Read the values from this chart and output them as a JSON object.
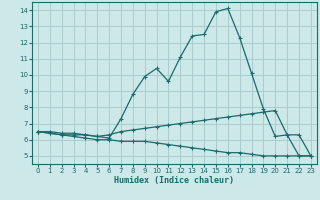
{
  "xlabel": "Humidex (Indice chaleur)",
  "ylabel": "",
  "bg_color": "#cce8e8",
  "grid_color": "#aacccc",
  "line_color": "#1a6b6b",
  "xlim": [
    -0.5,
    23.5
  ],
  "ylim": [
    4.5,
    14.5
  ],
  "xticks": [
    0,
    1,
    2,
    3,
    4,
    5,
    6,
    7,
    8,
    9,
    10,
    11,
    12,
    13,
    14,
    15,
    16,
    17,
    18,
    19,
    20,
    21,
    22,
    23
  ],
  "yticks": [
    5,
    6,
    7,
    8,
    9,
    10,
    11,
    12,
    13,
    14
  ],
  "line1_x": [
    0,
    1,
    2,
    3,
    4,
    5,
    6,
    7,
    8,
    9,
    10,
    11,
    12,
    13,
    14,
    15,
    16,
    17,
    18,
    19,
    20,
    21,
    22,
    23
  ],
  "line1_y": [
    6.5,
    6.4,
    6.3,
    6.3,
    6.3,
    6.2,
    6.1,
    7.3,
    8.8,
    9.9,
    10.4,
    9.6,
    11.1,
    12.4,
    12.5,
    13.9,
    14.1,
    12.3,
    10.1,
    7.9,
    6.2,
    6.3,
    5.0,
    5.0
  ],
  "line2_x": [
    0,
    1,
    2,
    3,
    4,
    5,
    6,
    7,
    8,
    9,
    10,
    11,
    12,
    13,
    14,
    15,
    16,
    17,
    18,
    19,
    20,
    21,
    22,
    23
  ],
  "line2_y": [
    6.5,
    6.5,
    6.4,
    6.4,
    6.3,
    6.2,
    6.3,
    6.5,
    6.6,
    6.7,
    6.8,
    6.9,
    7.0,
    7.1,
    7.2,
    7.3,
    7.4,
    7.5,
    7.6,
    7.7,
    7.8,
    6.3,
    6.3,
    5.0
  ],
  "line3_x": [
    0,
    1,
    2,
    3,
    4,
    5,
    6,
    7,
    8,
    9,
    10,
    11,
    12,
    13,
    14,
    15,
    16,
    17,
    18,
    19,
    20,
    21,
    22,
    23
  ],
  "line3_y": [
    6.5,
    6.4,
    6.3,
    6.2,
    6.1,
    6.0,
    6.0,
    5.9,
    5.9,
    5.9,
    5.8,
    5.7,
    5.6,
    5.5,
    5.4,
    5.3,
    5.2,
    5.2,
    5.1,
    5.0,
    5.0,
    5.0,
    5.0,
    5.0
  ]
}
